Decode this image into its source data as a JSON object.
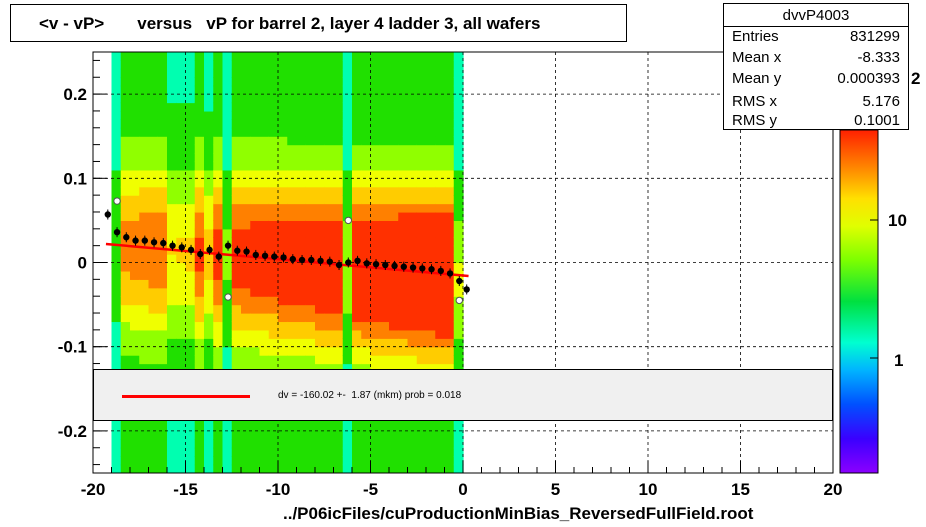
{
  "title": "<v - vP>       versus   vP for barrel 2, layer 4 ladder 3, all wafers",
  "stats": {
    "name": "dvvP4003",
    "rows": [
      {
        "key": "Entries",
        "value": "831299"
      },
      {
        "key": "Mean x",
        "value": "-8.333"
      },
      {
        "key": "Mean y",
        "value": "0.000393"
      },
      {
        "key": "RMS x",
        "value": "5.176"
      },
      {
        "key": "RMS y",
        "value": "0.1001"
      }
    ]
  },
  "legend": {
    "text": "dv = -160.02 +-  1.87 (mkm) prob = 0.018",
    "line_color": "#ff0000"
  },
  "xaxis_title": "../P06icFiles/cuProductionMinBias_ReversedFullField.root",
  "colz_labels": [
    "10",
    "1"
  ],
  "colz_partial_label": "2",
  "chart_data": {
    "type": "heatmap",
    "title": "<v - vP>       versus   vP for barrel 2, layer 4 ladder 3, all wafers",
    "xlabel": "../P06icFiles/cuProductionMinBias_ReversedFullField.root",
    "ylabel": "",
    "xlim": [
      -20,
      20
    ],
    "ylim": [
      -0.25,
      0.25
    ],
    "x_ticks": [
      -20,
      -15,
      -10,
      -5,
      0,
      5,
      10,
      15,
      20
    ],
    "y_ticks": [
      -0.2,
      -0.1,
      0,
      0.1,
      0.2
    ],
    "x_tick_labels": [
      "-20",
      "-15",
      "-10",
      "-5",
      "0",
      "5",
      "10",
      "15",
      "20"
    ],
    "y_tick_labels": [
      "-0.2",
      "-0.1",
      "0",
      "0.1",
      "0.2"
    ],
    "grid": true,
    "data_x_range": [
      -19,
      0
    ],
    "profile_points": [
      {
        "x": -19.2,
        "y": 0.057
      },
      {
        "x": -18.7,
        "y": 0.036
      },
      {
        "x": -18.2,
        "y": 0.03
      },
      {
        "x": -17.7,
        "y": 0.026
      },
      {
        "x": -17.2,
        "y": 0.026
      },
      {
        "x": -16.7,
        "y": 0.024
      },
      {
        "x": -16.2,
        "y": 0.023
      },
      {
        "x": -15.7,
        "y": 0.02
      },
      {
        "x": -15.2,
        "y": 0.018
      },
      {
        "x": -14.7,
        "y": 0.015
      },
      {
        "x": -14.2,
        "y": 0.01
      },
      {
        "x": -13.7,
        "y": 0.015
      },
      {
        "x": -13.2,
        "y": 0.007
      },
      {
        "x": -12.7,
        "y": 0.02
      },
      {
        "x": -12.2,
        "y": 0.014
      },
      {
        "x": -11.7,
        "y": 0.013
      },
      {
        "x": -11.2,
        "y": 0.009
      },
      {
        "x": -10.7,
        "y": 0.008
      },
      {
        "x": -10.2,
        "y": 0.007
      },
      {
        "x": -9.7,
        "y": 0.006
      },
      {
        "x": -9.2,
        "y": 0.004
      },
      {
        "x": -8.7,
        "y": 0.003
      },
      {
        "x": -8.2,
        "y": 0.003
      },
      {
        "x": -7.7,
        "y": 0.002
      },
      {
        "x": -7.2,
        "y": 0.001
      },
      {
        "x": -6.7,
        "y": -0.003
      },
      {
        "x": -6.2,
        "y": 0.0
      },
      {
        "x": -5.7,
        "y": 0.002
      },
      {
        "x": -5.2,
        "y": -0.001
      },
      {
        "x": -4.7,
        "y": -0.002
      },
      {
        "x": -4.2,
        "y": -0.003
      },
      {
        "x": -3.7,
        "y": -0.004
      },
      {
        "x": -3.2,
        "y": -0.005
      },
      {
        "x": -2.7,
        "y": -0.006
      },
      {
        "x": -2.2,
        "y": -0.007
      },
      {
        "x": -1.7,
        "y": -0.008
      },
      {
        "x": -1.2,
        "y": -0.01
      },
      {
        "x": -0.7,
        "y": -0.013
      },
      {
        "x": -0.2,
        "y": -0.022
      },
      {
        "x": 0.2,
        "y": -0.032
      }
    ],
    "outlier_points": [
      {
        "x": -18.7,
        "y": 0.073
      },
      {
        "x": -12.7,
        "y": -0.041
      },
      {
        "x": -6.2,
        "y": 0.05
      },
      {
        "x": -0.2,
        "y": -0.045
      }
    ],
    "fit_line": {
      "x": [
        -19.3,
        0.3
      ],
      "y": [
        0.022,
        -0.016
      ],
      "color": "#ff0000"
    }
  }
}
